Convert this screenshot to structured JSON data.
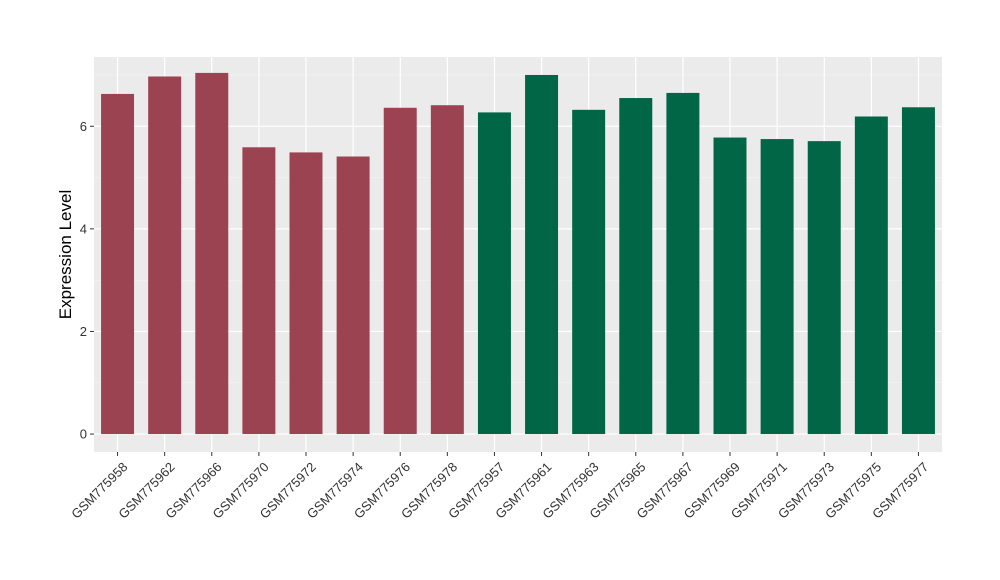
{
  "chart_data": {
    "type": "bar",
    "title": "",
    "xlabel": "",
    "ylabel": "Expression Level",
    "ylim": [
      -0.35,
      7.35
    ],
    "yticks": [
      0,
      2,
      4,
      6
    ],
    "grid": true,
    "background": "#ebebeb",
    "categories": [
      "GSM775958",
      "GSM775962",
      "GSM775966",
      "GSM775970",
      "GSM775972",
      "GSM775974",
      "GSM775976",
      "GSM775978",
      "GSM775957",
      "GSM775961",
      "GSM775963",
      "GSM775965",
      "GSM775967",
      "GSM775969",
      "GSM775971",
      "GSM775973",
      "GSM775975",
      "GSM775977"
    ],
    "values": [
      6.63,
      6.97,
      7.04,
      5.59,
      5.49,
      5.41,
      6.36,
      6.41,
      6.27,
      7.0,
      6.32,
      6.55,
      6.65,
      5.78,
      5.75,
      5.71,
      6.19,
      6.37
    ],
    "bar_colors": [
      "#9b4350",
      "#9b4350",
      "#9b4350",
      "#9b4350",
      "#9b4350",
      "#9b4350",
      "#9b4350",
      "#9b4350",
      "#006645",
      "#006645",
      "#006645",
      "#006645",
      "#006645",
      "#006645",
      "#006645",
      "#006645",
      "#006645",
      "#006645"
    ]
  }
}
